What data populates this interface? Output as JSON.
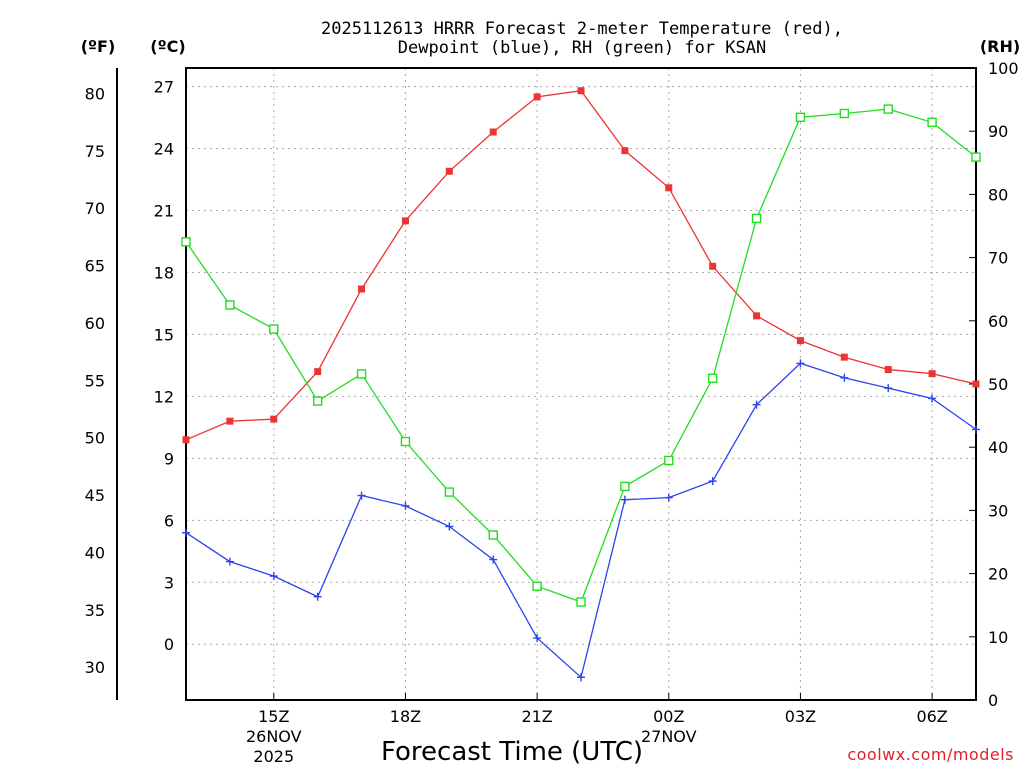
{
  "chart_data": {
    "type": "line",
    "title_line1": "2025112613 HRRR Forecast 2-meter Temperature (red),",
    "title_line2": "Dewpoint (blue), RH (green) for KSAN",
    "xlabel": "Forecast Time (UTC)",
    "credit": "coolwx.com/models",
    "unit_labels": {
      "fahrenheit": "(ºF)",
      "celsius": "(ºC)",
      "rh": "(RH)"
    },
    "x_hours_from_start": [
      0,
      1,
      2,
      3,
      4,
      5,
      6,
      7,
      8,
      9,
      10,
      11,
      12,
      13,
      14,
      15,
      16,
      17,
      18
    ],
    "x_range": [
      0,
      18
    ],
    "x_ticks": [
      {
        "hour": 2,
        "label": "15Z",
        "sub1": "26NOV",
        "sub2": "2025"
      },
      {
        "hour": 5,
        "label": "18Z"
      },
      {
        "hour": 8,
        "label": "21Z"
      },
      {
        "hour": 11,
        "label": "00Z",
        "sub1": "27NOV"
      },
      {
        "hour": 14,
        "label": "03Z"
      },
      {
        "hour": 17,
        "label": "06Z"
      }
    ],
    "celsius_axis": {
      "range": [
        -2.7,
        27.9
      ],
      "ticks": [
        "0",
        "3",
        "6",
        "9",
        "12",
        "15",
        "18",
        "21",
        "24",
        "27"
      ]
    },
    "fahrenheit_axis": {
      "ticks": [
        "30",
        "35",
        "40",
        "45",
        "50",
        "55",
        "60",
        "65",
        "70",
        "75",
        "80"
      ]
    },
    "rh_axis": {
      "range": [
        0,
        100
      ],
      "ticks": [
        "0",
        "10",
        "20",
        "30",
        "40",
        "50",
        "60",
        "70",
        "80",
        "90",
        "100"
      ]
    },
    "series": [
      {
        "name": "2-meter Temperature",
        "color": "#ee3333",
        "axis": "celsius",
        "marker": "filled-square",
        "values": [
          9.9,
          10.8,
          10.9,
          13.2,
          17.2,
          20.5,
          22.9,
          24.8,
          26.5,
          26.8,
          23.9,
          22.1,
          18.3,
          15.9,
          14.7,
          13.9,
          13.3,
          13.1,
          12.6
        ]
      },
      {
        "name": "Dewpoint",
        "color": "#2a44ee",
        "axis": "celsius",
        "marker": "plus",
        "values": [
          5.4,
          4.0,
          3.3,
          2.3,
          7.2,
          6.7,
          5.7,
          4.1,
          0.3,
          -1.6,
          7.0,
          7.1,
          7.9,
          11.6,
          13.6,
          12.9,
          12.4,
          11.9,
          10.4
        ]
      },
      {
        "name": "RH",
        "color": "#22dd22",
        "axis": "rh",
        "marker": "open-square",
        "values": [
          72.5,
          62.5,
          58.7,
          47.3,
          51.6,
          40.9,
          32.9,
          26.1,
          18.0,
          15.5,
          33.8,
          37.9,
          50.9,
          76.2,
          92.2,
          92.8,
          93.5,
          91.4,
          85.9
        ]
      }
    ]
  }
}
